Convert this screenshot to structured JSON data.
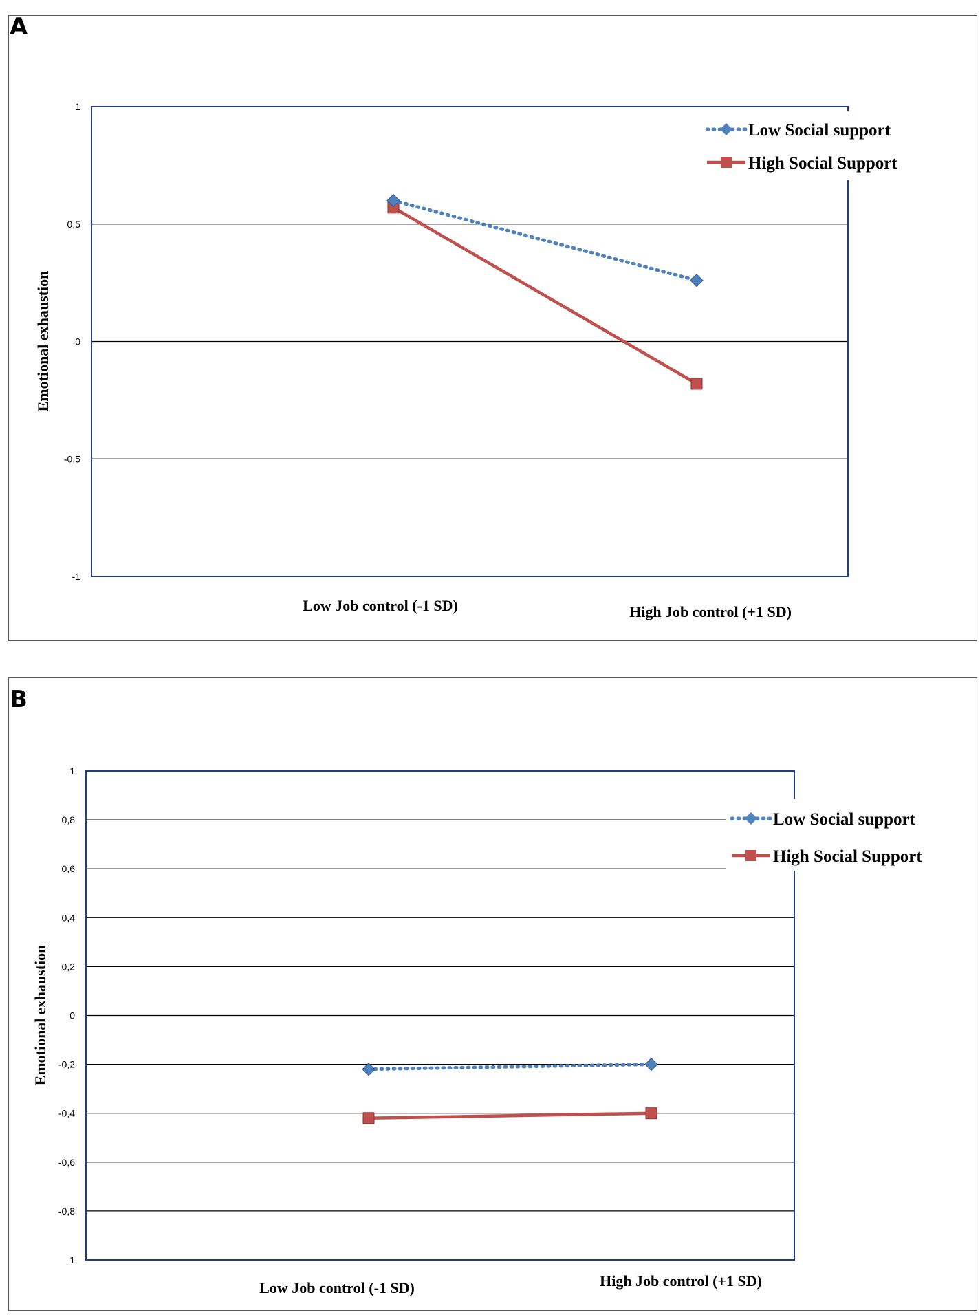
{
  "panels": {
    "a": {
      "label": "A"
    },
    "b": {
      "label": "B"
    }
  },
  "colors": {
    "low_social_support": "#4f81bd",
    "high_social_support": "#c0504d",
    "plot_border": "#1f3d8a",
    "gridline": "#000000"
  },
  "chart_data": [
    {
      "type": "line",
      "panel": "A",
      "categories": [
        "Low Job control (-1 SD)",
        "High Job control (+1 SD)"
      ],
      "series": [
        {
          "name": "Low Social support",
          "values": [
            0.6,
            0.26
          ],
          "style": "dotted",
          "marker": "diamond"
        },
        {
          "name": "High Social Support",
          "values": [
            0.57,
            -0.18
          ],
          "style": "solid",
          "marker": "square"
        }
      ],
      "ylabel": "Emotional exhaustion",
      "xlabel": "",
      "ylim": [
        -1,
        1
      ],
      "yticks": [
        1,
        0.5,
        0,
        -0.5,
        -1
      ],
      "ytick_labels": [
        "1",
        "0,5",
        "0",
        "-0,5",
        "-1"
      ],
      "grid": true,
      "legend": "top-right"
    },
    {
      "type": "line",
      "panel": "B",
      "categories": [
        "Low Job control (-1 SD)",
        "High Job control (+1 SD)"
      ],
      "series": [
        {
          "name": "Low Social support",
          "values": [
            -0.22,
            -0.2
          ],
          "style": "dotted",
          "marker": "diamond"
        },
        {
          "name": "High Social Support",
          "values": [
            -0.42,
            -0.4
          ],
          "style": "solid",
          "marker": "square"
        }
      ],
      "ylabel": "Emotional exhaustion",
      "xlabel": "",
      "ylim": [
        -1,
        1
      ],
      "yticks": [
        1,
        0.8,
        0.6,
        0.4,
        0.2,
        0,
        -0.2,
        -0.4,
        -0.6,
        -0.8,
        -1
      ],
      "ytick_labels": [
        "1",
        "0,8",
        "0,6",
        "0,4",
        "0,2",
        "0",
        "-0,2",
        "-0,4",
        "-0,6",
        "-0,8",
        "-1"
      ],
      "grid": true,
      "legend": "right"
    }
  ]
}
